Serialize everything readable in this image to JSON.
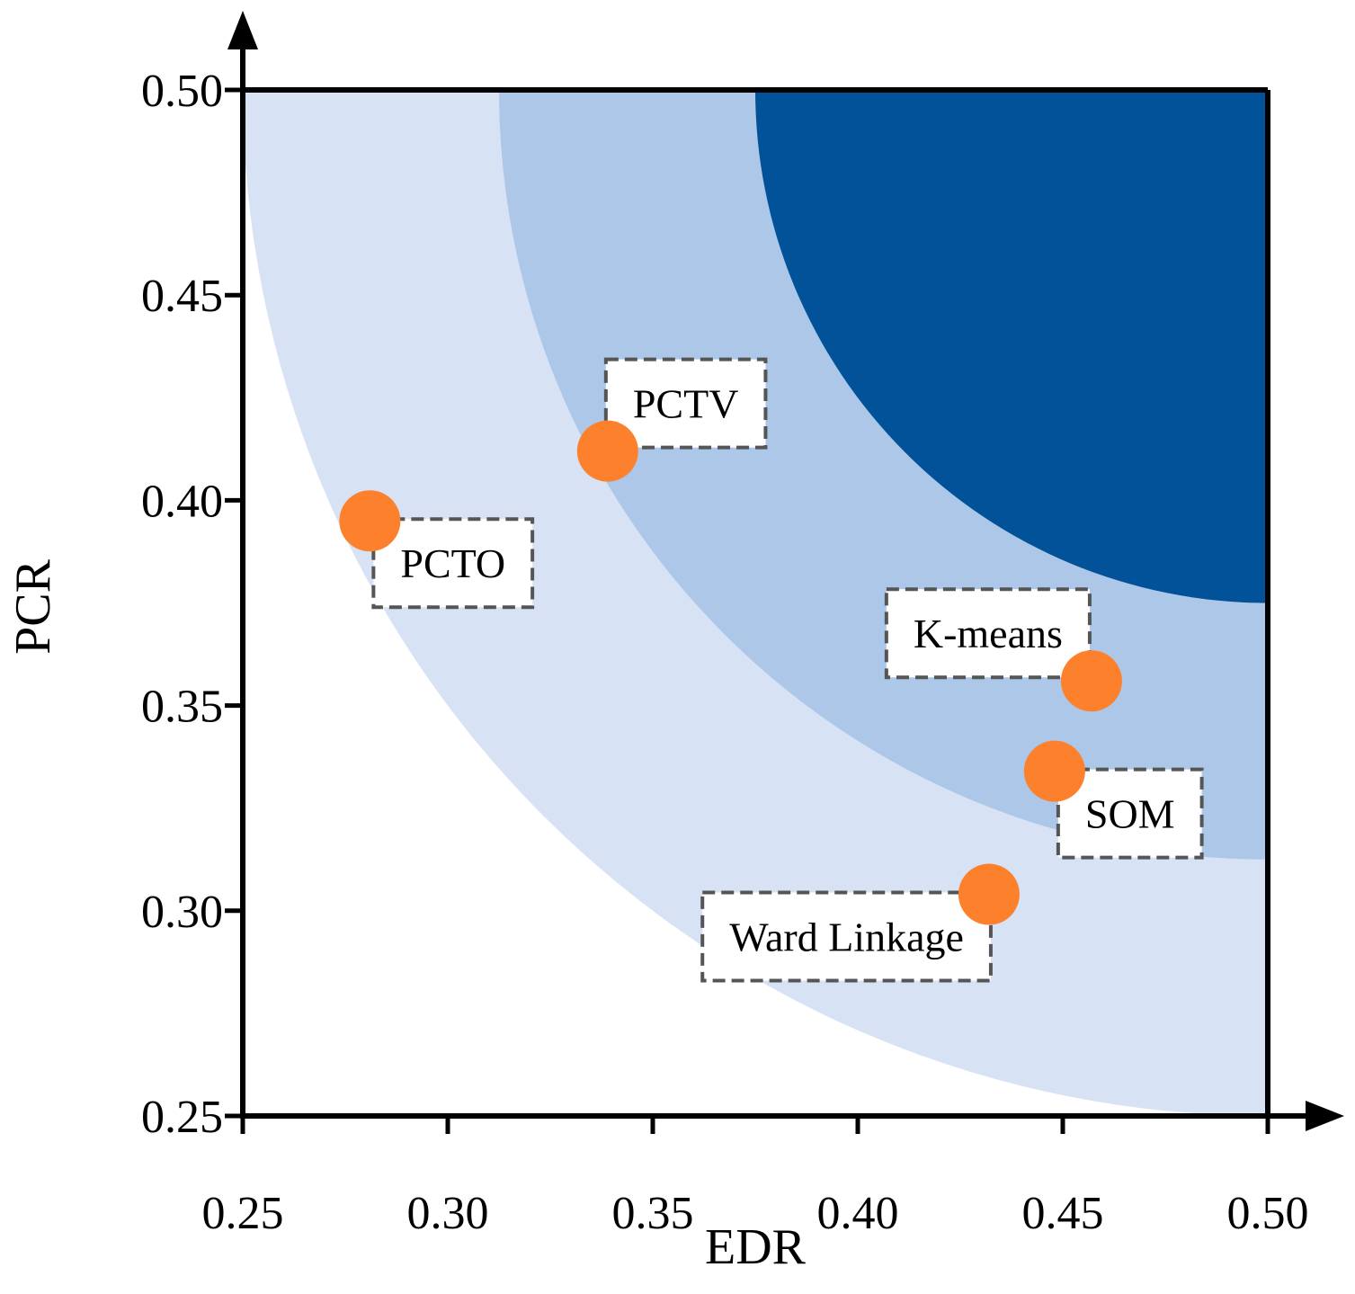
{
  "chart_data": {
    "type": "scatter",
    "xlabel": "EDR",
    "ylabel": "PCR",
    "xlim": [
      0.25,
      0.5
    ],
    "ylim": [
      0.25,
      0.5
    ],
    "x_ticks": [
      "0.25",
      "0.30",
      "0.35",
      "0.40",
      "0.45",
      "0.50"
    ],
    "y_ticks": [
      "0.25",
      "0.30",
      "0.35",
      "0.40",
      "0.45",
      "0.50"
    ],
    "grid": false,
    "points": [
      {
        "label": "PCTO",
        "x": 0.281,
        "y": 0.395,
        "label_side": "below-right"
      },
      {
        "label": "PCTV",
        "x": 0.339,
        "y": 0.412,
        "label_side": "above-right"
      },
      {
        "label": "K-means",
        "x": 0.457,
        "y": 0.356,
        "label_side": "above-left"
      },
      {
        "label": "SOM",
        "x": 0.448,
        "y": 0.334,
        "label_side": "below-right"
      },
      {
        "label": "Ward Linkage",
        "x": 0.432,
        "y": 0.304,
        "label_side": "below-left"
      }
    ],
    "bands": [
      {
        "center": [
          0.5,
          0.5
        ],
        "radius": 0.25,
        "color": "#d7e3f4"
      },
      {
        "center": [
          0.5,
          0.5
        ],
        "radius": 0.1875,
        "color": "#adc7e8"
      },
      {
        "center": [
          0.5,
          0.5
        ],
        "radius": 0.125,
        "color": "#015298"
      }
    ],
    "point_color": "#fd812d"
  }
}
